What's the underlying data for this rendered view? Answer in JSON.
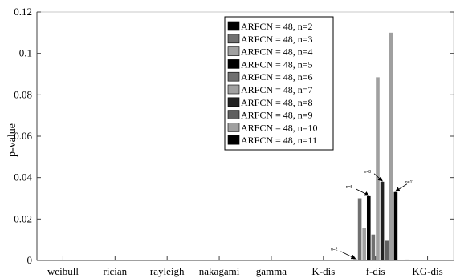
{
  "chart_data": {
    "type": "bar",
    "ylabel": "p-value",
    "xlabel": "",
    "ylim": [
      0,
      0.12
    ],
    "yticks": [
      0,
      0.02,
      0.04,
      0.06,
      0.08,
      0.1,
      0.12
    ],
    "ytick_labels": [
      "0",
      "0.02",
      "0.04",
      "0.06",
      "0.08",
      "0.1",
      "0.12"
    ],
    "categories": [
      "weibull",
      "rician",
      "rayleigh",
      "nakagami",
      "gamma",
      "K-dis",
      "f-dis",
      "KG-dis"
    ],
    "grid": false,
    "legend_position": "top-center",
    "series": [
      {
        "name": "ARFCN = 48,  n=2",
        "color": "#000000",
        "values": [
          0,
          0,
          0,
          0,
          0,
          0,
          0.0005,
          0.0004
        ]
      },
      {
        "name": "ARFCN = 48,  n=3",
        "color": "#707070",
        "values": [
          0,
          0,
          0,
          0,
          0,
          0,
          0.03,
          0
        ]
      },
      {
        "name": "ARFCN = 48,  n=4",
        "color": "#a0a0a0",
        "values": [
          0,
          0,
          0,
          0,
          0,
          0.0002,
          0.0155,
          0.0003
        ]
      },
      {
        "name": "ARFCN = 48,  n=5",
        "color": "#000000",
        "values": [
          0,
          0,
          0,
          0,
          0,
          0,
          0.031,
          0
        ]
      },
      {
        "name": "ARFCN = 48,  n=6",
        "color": "#707070",
        "values": [
          0,
          0,
          0,
          0,
          0,
          0,
          0.0125,
          0
        ]
      },
      {
        "name": "ARFCN = 48,  n=7",
        "color": "#a0a0a0",
        "values": [
          0,
          0,
          0,
          0,
          0.0002,
          0,
          0.0885,
          0
        ]
      },
      {
        "name": "ARFCN = 48,  n=8",
        "color": "#222222",
        "values": [
          0,
          0,
          0,
          0,
          0,
          0,
          0.038,
          0
        ]
      },
      {
        "name": "ARFCN = 48,  n=9",
        "color": "#606060",
        "values": [
          0,
          0,
          0,
          0,
          0,
          0,
          0.0095,
          0
        ]
      },
      {
        "name": "ARFCN = 48,  n=10",
        "color": "#a0a0a0",
        "values": [
          0,
          0,
          0,
          0,
          0,
          0,
          0.11,
          0
        ]
      },
      {
        "name": "ARFCN = 48,  n=11",
        "color": "#000000",
        "values": [
          0,
          0,
          0,
          0,
          0,
          0,
          0.033,
          0
        ]
      }
    ],
    "annotations": [
      {
        "text": "n=2",
        "series": 0,
        "category": 6
      },
      {
        "text": "n=5",
        "series": 3,
        "category": 6
      },
      {
        "text": "n=8",
        "series": 6,
        "category": 6
      },
      {
        "text": "n=11",
        "series": 9,
        "category": 6
      }
    ]
  }
}
